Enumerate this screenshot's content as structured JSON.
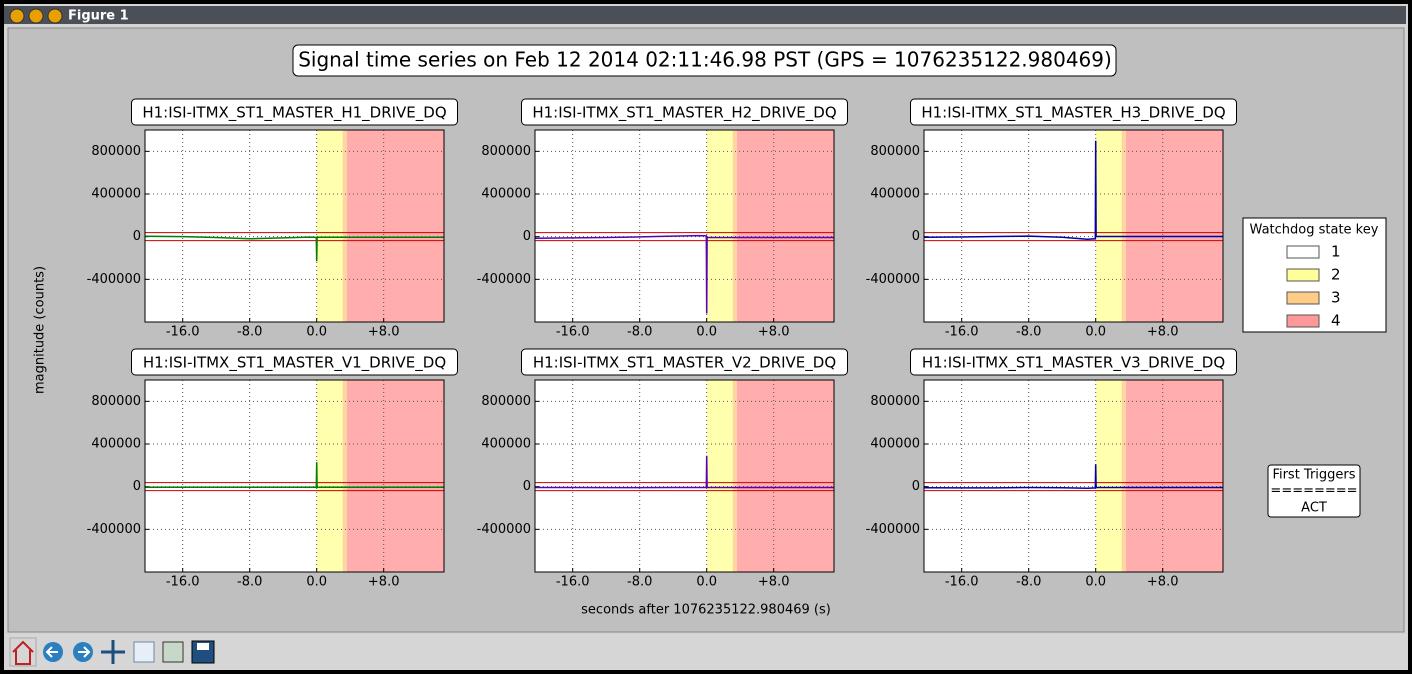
{
  "window": {
    "title": "Figure 1"
  },
  "figure": {
    "title": "Signal time series on Feb 12 2014 02:11:46.98 PST (GPS = 1076235122.980469)",
    "xlabel": "seconds after 1076235122.980469 (s)",
    "ylabel": "magnitude (counts)"
  },
  "legend": {
    "title": "Watchdog state key",
    "entries": [
      {
        "name": "1",
        "color": "#ffffff"
      },
      {
        "name": "2",
        "color": "#ffff99"
      },
      {
        "name": "3",
        "color": "#ffcc88"
      },
      {
        "name": "4",
        "color": "#ff9999"
      }
    ]
  },
  "triggers": {
    "title": "First Triggers",
    "separator": "========",
    "items": [
      "ACT"
    ]
  },
  "chart_data": [
    {
      "type": "line",
      "title": "H1:ISI-ITMX_ST1_MASTER_H1_DRIVE_DQ",
      "xlim": [
        -20.5,
        15.2
      ],
      "ylim": [
        -800000,
        1000000
      ],
      "xticks": [
        {
          "value": -16,
          "label": "-16.0"
        },
        {
          "value": -8,
          "label": "-8.0"
        },
        {
          "value": 0,
          "label": "0.0"
        },
        {
          "value": 8,
          "label": "+8.0"
        }
      ],
      "yticks": [
        800000,
        400000,
        0,
        -400000
      ],
      "grid": true,
      "regions": [
        {
          "start": 0,
          "end": 3.1,
          "state": 2
        },
        {
          "start": 3.1,
          "end": 3.6,
          "state": 3
        },
        {
          "start": 3.6,
          "end": 15.2,
          "state": 4
        }
      ],
      "hlines": [
        {
          "value": 37600,
          "color": "#cc0000"
        },
        {
          "value": -37600,
          "color": "#cc0000"
        }
      ],
      "series": [
        {
          "color": "#007f00",
          "x": [
            -20.5,
            -16,
            -12,
            -8,
            -4,
            -1,
            -0.05,
            0,
            0.05,
            0.1,
            4,
            8,
            15.2
          ],
          "values": [
            3000,
            1000,
            -8000,
            -20000,
            -12000,
            -4000,
            -6000,
            -230000,
            -10000,
            -5000,
            -5000,
            -5000,
            -5000
          ]
        }
      ]
    },
    {
      "type": "line",
      "title": "H1:ISI-ITMX_ST1_MASTER_H2_DRIVE_DQ",
      "xlim": [
        -20.5,
        15.2
      ],
      "ylim": [
        -800000,
        1000000
      ],
      "xticks": [
        {
          "value": -16,
          "label": "-16.0"
        },
        {
          "value": -8,
          "label": "-8.0"
        },
        {
          "value": 0,
          "label": "0.0"
        },
        {
          "value": 8,
          "label": "+8.0"
        }
      ],
      "yticks": [
        800000,
        400000,
        0,
        -400000
      ],
      "grid": true,
      "regions": [
        {
          "start": 0,
          "end": 3.1,
          "state": 2
        },
        {
          "start": 3.1,
          "end": 3.6,
          "state": 3
        },
        {
          "start": 3.6,
          "end": 15.2,
          "state": 4
        }
      ],
      "hlines": [
        {
          "value": 37600,
          "color": "#cc0000"
        },
        {
          "value": -37600,
          "color": "#cc0000"
        }
      ],
      "series": [
        {
          "color": "#5a00b4",
          "x": [
            -20.5,
            -16,
            -12,
            -8,
            -4,
            -1,
            -0.05,
            0,
            0.05,
            0.1,
            4,
            8,
            15.2
          ],
          "values": [
            -15000,
            -12000,
            -8000,
            -2000,
            5000,
            10000,
            8000,
            -720000,
            -10000,
            -8000,
            -8000,
            -8000,
            -8000
          ]
        }
      ]
    },
    {
      "type": "line",
      "title": "H1:ISI-ITMX_ST1_MASTER_H3_DRIVE_DQ",
      "xlim": [
        -20.5,
        15.2
      ],
      "ylim": [
        -800000,
        1000000
      ],
      "xticks": [
        {
          "value": -16,
          "label": "-16.0"
        },
        {
          "value": -8,
          "label": "-8.0"
        },
        {
          "value": 0,
          "label": "0.0"
        },
        {
          "value": 8,
          "label": "+8.0"
        }
      ],
      "yticks": [
        800000,
        400000,
        0,
        -400000
      ],
      "grid": true,
      "regions": [
        {
          "start": 0,
          "end": 3.1,
          "state": 2
        },
        {
          "start": 3.1,
          "end": 3.6,
          "state": 3
        },
        {
          "start": 3.6,
          "end": 15.2,
          "state": 4
        }
      ],
      "hlines": [
        {
          "value": 37600,
          "color": "#cc0000"
        },
        {
          "value": -37600,
          "color": "#cc0000"
        }
      ],
      "series": [
        {
          "color": "#0000aa",
          "x": [
            -20.5,
            -16,
            -12,
            -8,
            -4,
            -1,
            -0.05,
            0,
            0.05,
            0.1,
            4,
            8,
            15.2
          ],
          "values": [
            -5000,
            -3000,
            2000,
            5000,
            -5000,
            -25000,
            -20000,
            900000,
            5000,
            2000,
            2000,
            2000,
            2000
          ]
        }
      ]
    },
    {
      "type": "line",
      "title": "H1:ISI-ITMX_ST1_MASTER_V1_DRIVE_DQ",
      "xlim": [
        -20.5,
        15.2
      ],
      "ylim": [
        -800000,
        1000000
      ],
      "xticks": [
        {
          "value": -16,
          "label": "-16.0"
        },
        {
          "value": -8,
          "label": "-8.0"
        },
        {
          "value": 0,
          "label": "0.0"
        },
        {
          "value": 8,
          "label": "+8.0"
        }
      ],
      "yticks": [
        800000,
        400000,
        0,
        -400000
      ],
      "grid": true,
      "regions": [
        {
          "start": 0,
          "end": 3.1,
          "state": 2
        },
        {
          "start": 3.1,
          "end": 3.6,
          "state": 3
        },
        {
          "start": 3.6,
          "end": 15.2,
          "state": 4
        }
      ],
      "hlines": [
        {
          "value": 37600,
          "color": "#cc0000"
        },
        {
          "value": -37600,
          "color": "#cc0000"
        }
      ],
      "series": [
        {
          "color": "#007f00",
          "x": [
            -20.5,
            -16,
            -12,
            -8,
            -4,
            -1,
            -0.05,
            0,
            0.05,
            0.1,
            4,
            8,
            15.2
          ],
          "values": [
            -5000,
            -5000,
            -6000,
            -6000,
            -5000,
            -5000,
            -5000,
            230000,
            -5000,
            -5000,
            -5000,
            -5000,
            -5000
          ]
        }
      ]
    },
    {
      "type": "line",
      "title": "H1:ISI-ITMX_ST1_MASTER_V2_DRIVE_DQ",
      "xlim": [
        -20.5,
        15.2
      ],
      "ylim": [
        -800000,
        1000000
      ],
      "xticks": [
        {
          "value": -16,
          "label": "-16.0"
        },
        {
          "value": -8,
          "label": "-8.0"
        },
        {
          "value": 0,
          "label": "0.0"
        },
        {
          "value": 8,
          "label": "+8.0"
        }
      ],
      "yticks": [
        800000,
        400000,
        0,
        -400000
      ],
      "grid": true,
      "regions": [
        {
          "start": 0,
          "end": 3.1,
          "state": 2
        },
        {
          "start": 3.1,
          "end": 3.6,
          "state": 3
        },
        {
          "start": 3.6,
          "end": 15.2,
          "state": 4
        }
      ],
      "hlines": [
        {
          "value": 37600,
          "color": "#cc0000"
        },
        {
          "value": -37600,
          "color": "#cc0000"
        }
      ],
      "series": [
        {
          "color": "#5a00b4",
          "x": [
            -20.5,
            -16,
            -12,
            -8,
            -4,
            -1,
            -0.05,
            0,
            0.05,
            0.1,
            4,
            8,
            15.2
          ],
          "values": [
            -8000,
            -8000,
            -9000,
            -9000,
            -8000,
            -8000,
            -8000,
            290000,
            -8000,
            -8000,
            -8000,
            -8000,
            -8000
          ]
        }
      ]
    },
    {
      "type": "line",
      "title": "H1:ISI-ITMX_ST1_MASTER_V3_DRIVE_DQ",
      "xlim": [
        -20.5,
        15.2
      ],
      "ylim": [
        -800000,
        1000000
      ],
      "xticks": [
        {
          "value": -16,
          "label": "-16.0"
        },
        {
          "value": -8,
          "label": "-8.0"
        },
        {
          "value": 0,
          "label": "0.0"
        },
        {
          "value": 8,
          "label": "+8.0"
        }
      ],
      "yticks": [
        800000,
        400000,
        0,
        -400000
      ],
      "grid": true,
      "regions": [
        {
          "start": 0,
          "end": 3.1,
          "state": 2
        },
        {
          "start": 3.1,
          "end": 3.6,
          "state": 3
        },
        {
          "start": 3.6,
          "end": 15.2,
          "state": 4
        }
      ],
      "hlines": [
        {
          "value": 37600,
          "color": "#cc0000"
        },
        {
          "value": -37600,
          "color": "#cc0000"
        }
      ],
      "series": [
        {
          "color": "#0000aa",
          "x": [
            -20.5,
            -16,
            -12,
            -8,
            -4,
            -1,
            -0.05,
            0,
            0.05,
            0.1,
            4,
            8,
            15.2
          ],
          "values": [
            -10000,
            -12000,
            -12000,
            -8000,
            -10000,
            -15000,
            -12000,
            210000,
            -8000,
            -8000,
            -8000,
            -8000,
            -8000
          ]
        }
      ]
    }
  ]
}
